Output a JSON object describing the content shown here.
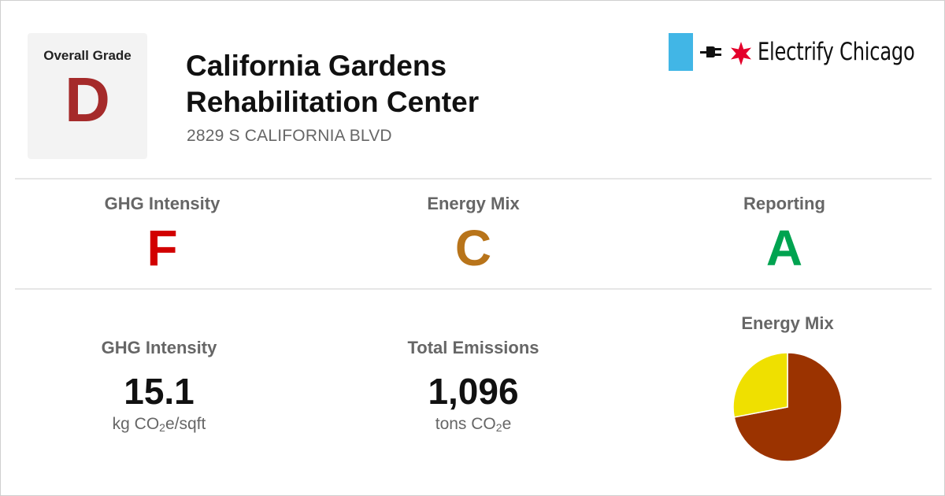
{
  "brand": {
    "name": "Electrify Chicago",
    "flag_color": "#41b6e6",
    "star_color": "#e4002b"
  },
  "overall": {
    "label": "Overall Grade",
    "grade": "D",
    "grade_color": "#a52a2a"
  },
  "building": {
    "name_line1": "California Gardens",
    "name_line2": "Rehabilitation Center",
    "address": "2829 S CALIFORNIA BLVD"
  },
  "grades": [
    {
      "label": "GHG Intensity",
      "grade": "F",
      "color": "#d20000"
    },
    {
      "label": "Energy Mix",
      "grade": "C",
      "color": "#b8741a"
    },
    {
      "label": "Reporting",
      "grade": "A",
      "color": "#00a350"
    }
  ],
  "stats": {
    "ghg_intensity": {
      "label": "GHG Intensity",
      "value": "15.1",
      "unit_prefix": "kg CO",
      "unit_sub": "2",
      "unit_suffix": "e/sqft"
    },
    "total_emissions": {
      "label": "Total Emissions",
      "value": "1,096",
      "unit_prefix": "tons CO",
      "unit_sub": "2",
      "unit_suffix": "e"
    }
  },
  "energy_mix": {
    "title": "Energy Mix",
    "slices": [
      {
        "fraction": 0.72,
        "color": "#9b3300"
      },
      {
        "fraction": 0.28,
        "color": "#efe000"
      }
    ]
  }
}
